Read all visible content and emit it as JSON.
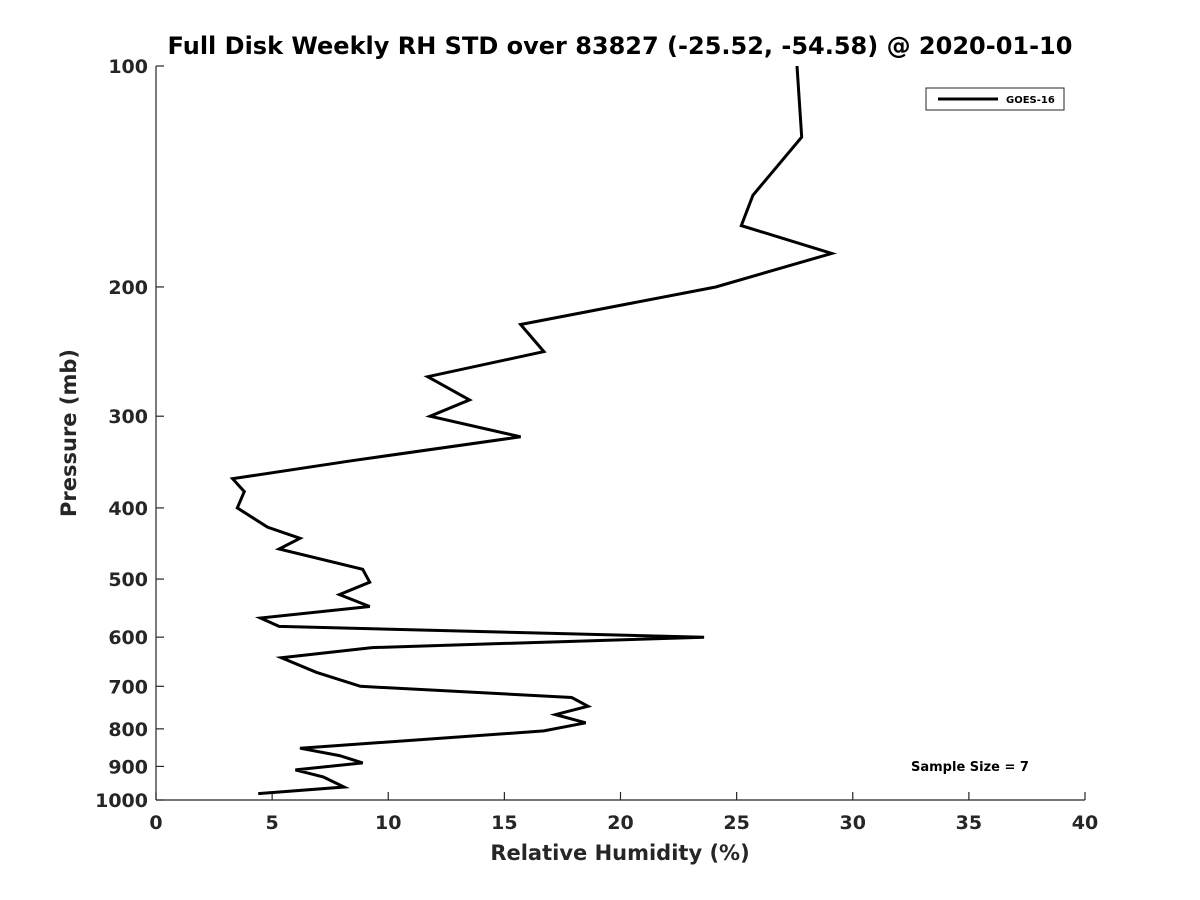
{
  "chart_data": {
    "type": "line",
    "title": "Full Disk Weekly RH STD over 83827 (-25.52, -54.58) @ 2020-01-10",
    "xlabel": "Relative Humidity (%)",
    "ylabel": "Pressure (mb)",
    "xlim": [
      0,
      40
    ],
    "ylim": [
      100,
      1000
    ],
    "y_scale": "log",
    "y_reversed": true,
    "x_ticks": [
      "0",
      "5",
      "10",
      "15",
      "20",
      "25",
      "30",
      "35",
      "40"
    ],
    "y_ticks": [
      "100",
      "200",
      "300",
      "400",
      "500",
      "600",
      "700",
      "800",
      "900",
      "1000"
    ],
    "grid": false,
    "legend": {
      "position": "top-right",
      "entries": [
        "GOES-16"
      ]
    },
    "annotation": "Sample Size = 7",
    "series": [
      {
        "name": "GOES-16",
        "color": "#000000",
        "points": [
          [
            27.6,
            100
          ],
          [
            27.8,
            125
          ],
          [
            25.7,
            150
          ],
          [
            25.2,
            165
          ],
          [
            29.1,
            180
          ],
          [
            24.1,
            200
          ],
          [
            15.7,
            225
          ],
          [
            16.7,
            245
          ],
          [
            11.7,
            265
          ],
          [
            13.5,
            285
          ],
          [
            11.8,
            300
          ],
          [
            15.7,
            320
          ],
          [
            8.4,
            345
          ],
          [
            3.3,
            365
          ],
          [
            3.8,
            380
          ],
          [
            3.5,
            400
          ],
          [
            4.8,
            425
          ],
          [
            6.2,
            440
          ],
          [
            5.3,
            455
          ],
          [
            8.9,
            485
          ],
          [
            9.2,
            505
          ],
          [
            7.9,
            525
          ],
          [
            9.2,
            545
          ],
          [
            4.5,
            565
          ],
          [
            5.3,
            580
          ],
          [
            23.6,
            600
          ],
          [
            9.3,
            620
          ],
          [
            5.4,
            640
          ],
          [
            6.9,
            670
          ],
          [
            8.8,
            700
          ],
          [
            17.9,
            725
          ],
          [
            18.6,
            745
          ],
          [
            17.2,
            765
          ],
          [
            18.5,
            785
          ],
          [
            16.7,
            805
          ],
          [
            6.2,
            850
          ],
          [
            7.9,
            870
          ],
          [
            8.9,
            890
          ],
          [
            6.0,
            910
          ],
          [
            7.2,
            930
          ],
          [
            8.1,
            960
          ],
          [
            4.4,
            980
          ]
        ]
      }
    ]
  }
}
